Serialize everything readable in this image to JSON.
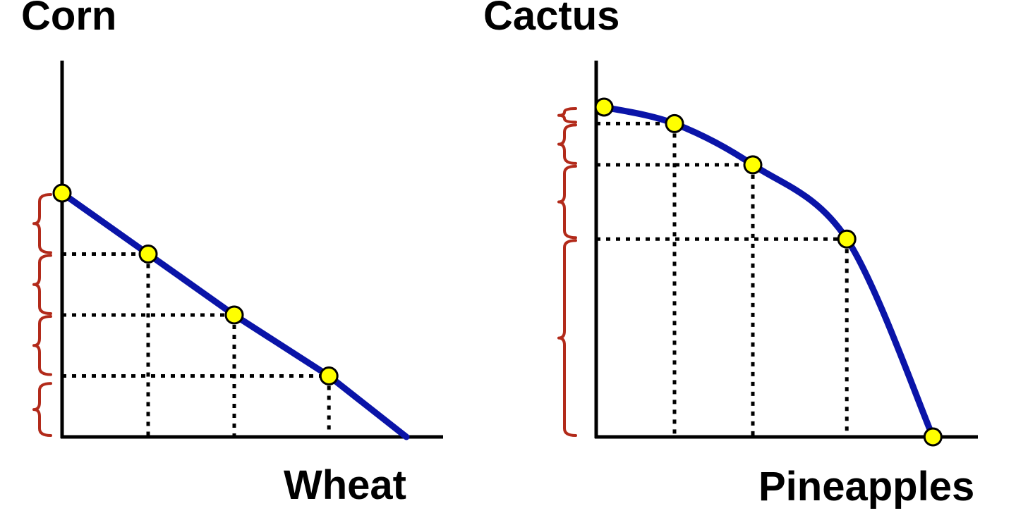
{
  "chart_data": [
    {
      "type": "line",
      "ylabel": "Corn",
      "xlabel": "Wheat",
      "x_max": 4,
      "y_max": 4,
      "points": [
        [
          0,
          4
        ],
        [
          1,
          3
        ],
        [
          2,
          2
        ],
        [
          3.1,
          1
        ],
        [
          4,
          0
        ]
      ],
      "marked_points": [
        [
          0,
          4
        ],
        [
          1,
          3
        ],
        [
          2,
          2
        ],
        [
          3.1,
          1
        ]
      ],
      "dotted_guides": [
        [
          1,
          3
        ],
        [
          2,
          2
        ],
        [
          3.1,
          1
        ]
      ],
      "y_brackets": [
        [
          0,
          0.9
        ],
        [
          1,
          2
        ],
        [
          2,
          3
        ],
        [
          3,
          4
        ]
      ],
      "line_color": "#0a14a8",
      "point_color": "#ffff00",
      "bracket_color": "#b22a1a"
    },
    {
      "type": "line",
      "ylabel": "Cactus",
      "xlabel": "Pineapples",
      "x_max": 4,
      "y_max": 4,
      "points": [
        [
          0.1,
          4
        ],
        [
          1,
          3.8
        ],
        [
          2,
          3.3
        ],
        [
          3.2,
          2.4
        ],
        [
          4.3,
          0
        ]
      ],
      "marked_points": [
        [
          0.1,
          4
        ],
        [
          1,
          3.8
        ],
        [
          2,
          3.3
        ],
        [
          3.2,
          2.4
        ],
        [
          4.3,
          0
        ]
      ],
      "dotted_guides": [
        [
          1,
          3.8
        ],
        [
          2,
          3.3
        ],
        [
          3.2,
          2.4
        ]
      ],
      "y_brackets": [
        [
          0,
          2.4
        ],
        [
          2.4,
          3.3
        ],
        [
          3.3,
          3.8
        ],
        [
          3.8,
          4
        ]
      ],
      "line_color": "#0a14a8",
      "point_color": "#ffff00",
      "bracket_color": "#b22a1a"
    }
  ]
}
